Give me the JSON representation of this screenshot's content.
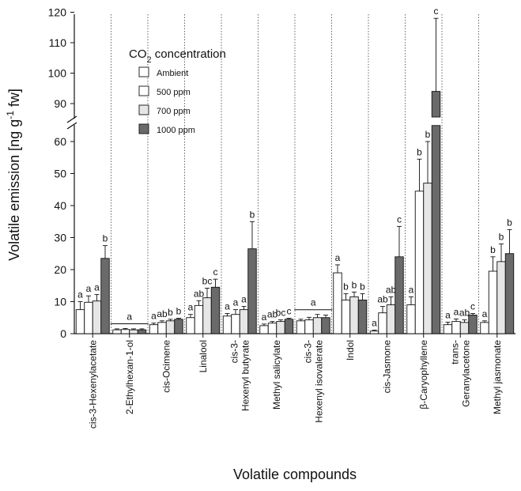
{
  "chart_data": {
    "type": "bar",
    "xlabel": "Volatile compounds",
    "ylabel_main": "Volatile emission [ng g",
    "ylabel_sup": "-1",
    "ylabel_tail": " fw]",
    "legend": {
      "title_main": "CO",
      "title_sub": "2",
      "title_tail": " concentration",
      "placement": "top-left"
    },
    "y_axis": {
      "lower_range": [
        0,
        65
      ],
      "lower_ticks": [
        "0",
        "10",
        "20",
        "30",
        "40",
        "50",
        "60"
      ],
      "upper_range": [
        85,
        120
      ],
      "upper_ticks": [
        "90",
        "100",
        "110",
        "120"
      ],
      "broken": true
    },
    "grid": false,
    "series": [
      {
        "name": "Ambient",
        "color": "#ffffff"
      },
      {
        "name": "500 ppm",
        "color": "#ffffff"
      },
      {
        "name": "700 ppm",
        "color": "#e6e6e6"
      },
      {
        "name": "1000 ppm",
        "color": "#6a6a6a"
      }
    ],
    "categories": [
      {
        "label": [
          "cis-3-Hexenylacetate"
        ],
        "values": [
          7.5,
          9.8,
          10.2,
          23.5
        ],
        "errors": [
          2.5,
          2.0,
          2.0,
          4.0
        ],
        "letters": [
          "a",
          "a",
          "a",
          "b"
        ]
      },
      {
        "label": [
          "2-Ethylhexan-1-ol"
        ],
        "values": [
          1.2,
          1.3,
          1.2,
          1.2
        ],
        "errors": [
          0.3,
          0.3,
          0.3,
          0.3
        ],
        "letters": [
          "a"
        ],
        "group_line": true
      },
      {
        "label": [
          "cis-Ocimene"
        ],
        "values": [
          2.8,
          3.5,
          4.0,
          4.5
        ],
        "errors": [
          0.5,
          0.5,
          0.5,
          0.3
        ],
        "letters": [
          "a",
          "ab",
          "b",
          "b"
        ]
      },
      {
        "label": [
          "Linalool"
        ],
        "values": [
          5.0,
          8.8,
          11.2,
          14.5
        ],
        "errors": [
          1.0,
          1.5,
          3.0,
          2.5
        ],
        "letters": [
          "a",
          "ab",
          "bc",
          "c"
        ]
      },
      {
        "label": [
          "cis-3-",
          "Hexenyl butyrate"
        ],
        "values": [
          5.5,
          6.0,
          7.5,
          26.5
        ],
        "errors": [
          0.8,
          1.5,
          1.0,
          8.5
        ],
        "letters": [
          "a",
          "a",
          "a",
          "b"
        ]
      },
      {
        "label": [
          "Methyl salicylate"
        ],
        "values": [
          2.5,
          3.3,
          3.8,
          4.5
        ],
        "errors": [
          0.5,
          0.5,
          0.5,
          0.3
        ],
        "letters": [
          "a",
          "ab",
          "bc",
          "c"
        ]
      },
      {
        "label": [
          "cis-3-",
          "Hexenyl isovalerate"
        ],
        "values": [
          4.0,
          4.3,
          5.0,
          5.0
        ],
        "errors": [
          0.5,
          0.8,
          1.0,
          0.8
        ],
        "letters": [
          "a"
        ],
        "group_line": true
      },
      {
        "label": [
          "Indol"
        ],
        "values": [
          19.0,
          10.5,
          11.5,
          10.5
        ],
        "errors": [
          2.5,
          2.0,
          1.5,
          2.0
        ],
        "letters": [
          "a",
          "b",
          "b",
          "b"
        ]
      },
      {
        "label": [
          "cis-Jasmone"
        ],
        "values": [
          0.8,
          6.5,
          9.0,
          24.0
        ],
        "errors": [
          0.3,
          2.0,
          2.5,
          9.5
        ],
        "letters": [
          "a",
          "ab",
          "ab",
          "c"
        ]
      },
      {
        "label": [
          "β-Caryophyllene"
        ],
        "values": [
          9.0,
          44.5,
          47.0,
          94.0
        ],
        "errors": [
          2.5,
          10.0,
          13.0,
          24.0
        ],
        "letters": [
          "a",
          "b",
          "b",
          "c"
        ]
      },
      {
        "label": [
          "trans-",
          "Geranylacetone"
        ],
        "values": [
          2.8,
          3.8,
          3.5,
          5.8
        ],
        "errors": [
          0.8,
          0.8,
          0.8,
          0.5
        ],
        "letters": [
          "a",
          "a",
          "ab",
          "c"
        ]
      },
      {
        "label": [
          "Methyl jasmonate"
        ],
        "values": [
          3.5,
          19.5,
          22.5,
          25.0
        ],
        "errors": [
          0.5,
          4.5,
          5.5,
          7.5
        ],
        "letters": [
          "a",
          "b",
          "b",
          "b"
        ]
      }
    ]
  }
}
